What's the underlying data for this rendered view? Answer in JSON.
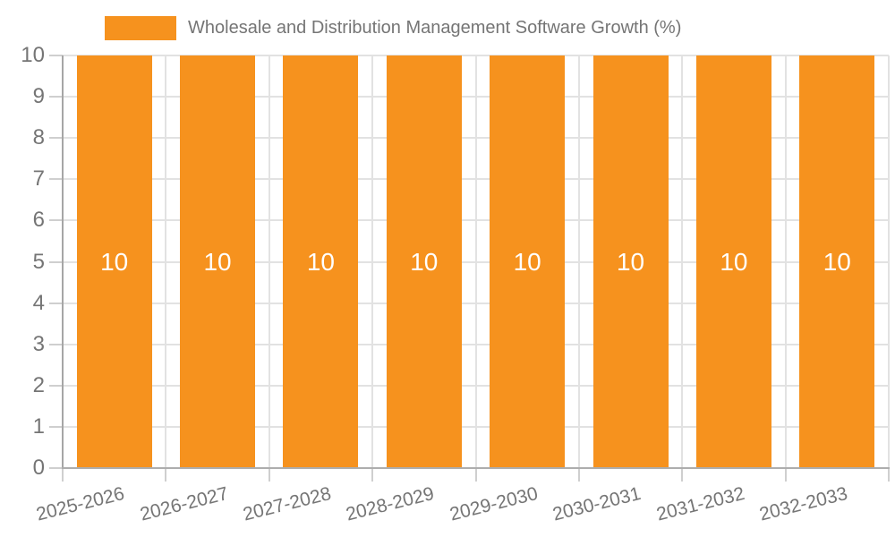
{
  "legend": {
    "label": "Wholesale and Distribution Management Software Growth (%)"
  },
  "chart_data": {
    "type": "bar",
    "title": "Wholesale and Distribution Management Software Growth (%)",
    "categories": [
      "2025-2026",
      "2026-2027",
      "2027-2028",
      "2028-2029",
      "2029-2030",
      "2030-2031",
      "2031-2032",
      "2032-2033"
    ],
    "values": [
      10,
      10,
      10,
      10,
      10,
      10,
      10,
      10
    ],
    "bar_value_labels": [
      "10",
      "10",
      "10",
      "10",
      "10",
      "10",
      "10",
      "10"
    ],
    "xlabel": "",
    "ylabel": "",
    "ylim": [
      0,
      10
    ],
    "yticks": [
      0,
      1,
      2,
      3,
      4,
      5,
      6,
      7,
      8,
      9,
      10
    ],
    "grid": true,
    "legend_position": "top",
    "colors": {
      "bar": "#F6921E",
      "value_label": "#FFFFFF",
      "axis_text": "#757575",
      "gridline": "#E2E2E2",
      "y_axis_line": "#A6A6A6",
      "x_axis_line": "#ADADAD",
      "tick": "#CFCFCF"
    }
  }
}
